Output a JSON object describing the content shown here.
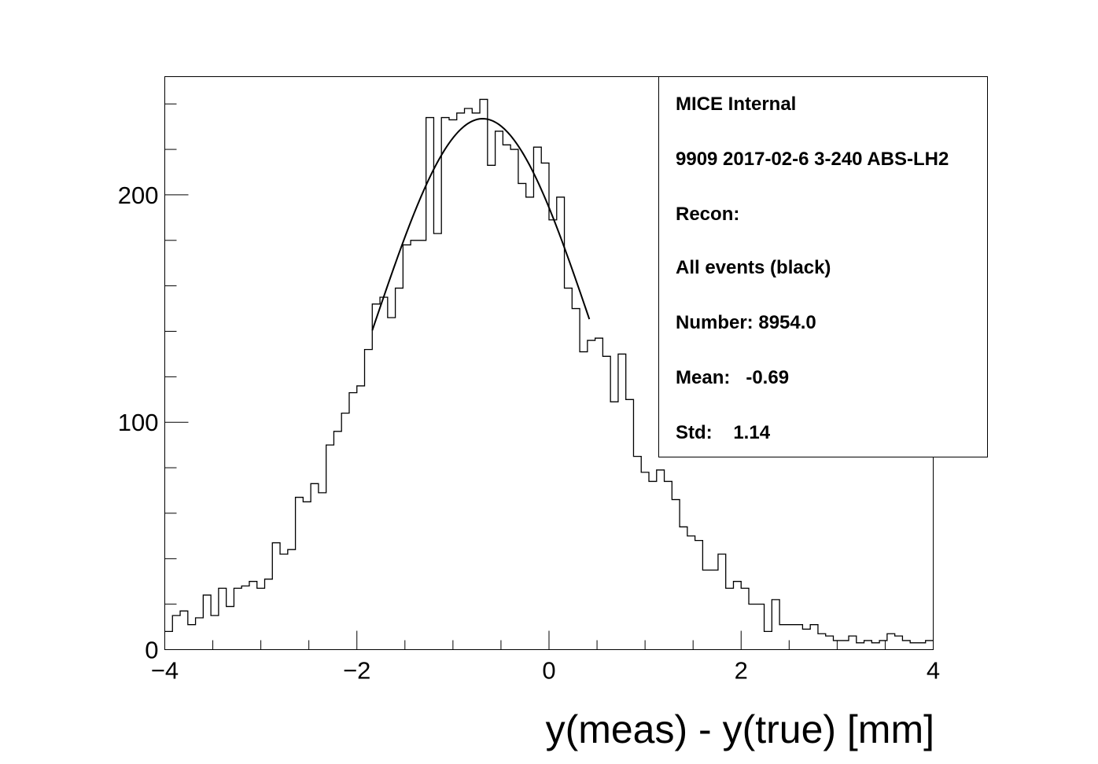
{
  "chart_data": {
    "type": "bar",
    "style": "step-histogram",
    "xlabel": "y(meas) - y(true) [mm]",
    "ylabel": "",
    "title": "",
    "xlim": [
      -4,
      4
    ],
    "ylim": [
      0,
      252
    ],
    "x_ticks": [
      {
        "value": -4,
        "label": "−4"
      },
      {
        "value": -2,
        "label": "−2"
      },
      {
        "value": 0,
        "label": "0"
      },
      {
        "value": 2,
        "label": "2"
      },
      {
        "value": 4,
        "label": "4"
      }
    ],
    "y_ticks": [
      {
        "value": 0,
        "label": "0"
      },
      {
        "value": 100,
        "label": "100"
      },
      {
        "value": 200,
        "label": "200"
      }
    ],
    "bin_start": -4,
    "bin_width": 0.08,
    "values": [
      8,
      15,
      17,
      11,
      14,
      24,
      15,
      27,
      19,
      27,
      28,
      30,
      27,
      31,
      47,
      42,
      44,
      67,
      65,
      73,
      69,
      90,
      96,
      104,
      113,
      116,
      132,
      152,
      155,
      146,
      159,
      178,
      180,
      180,
      234,
      183,
      234,
      233,
      236,
      238,
      236,
      242,
      213,
      228,
      222,
      220,
      205,
      199,
      221,
      214,
      189,
      199,
      159,
      150,
      131,
      136,
      137,
      129,
      109,
      130,
      110,
      85,
      78,
      74,
      79,
      74,
      66,
      54,
      50,
      48,
      35,
      35,
      42,
      27,
      30,
      27,
      20,
      20,
      8,
      22,
      11,
      11,
      11,
      9,
      11,
      7,
      6,
      4,
      4,
      6,
      3,
      4,
      3,
      4,
      7,
      6,
      4,
      3,
      3,
      4
    ],
    "fit": {
      "type": "gaus",
      "x_range": [
        -1.84,
        0.42
      ],
      "constant": 233.5,
      "mean": -0.69,
      "sigma": 1.14
    },
    "legend": {
      "position": "top-right",
      "lines": [
        "MICE Internal",
        "9909 2017-02-6 3-240 ABS-LH2",
        "Recon:",
        "All events (black)",
        "Number: 8954.0",
        "Mean:   -0.69",
        "Std:    1.14"
      ]
    }
  }
}
